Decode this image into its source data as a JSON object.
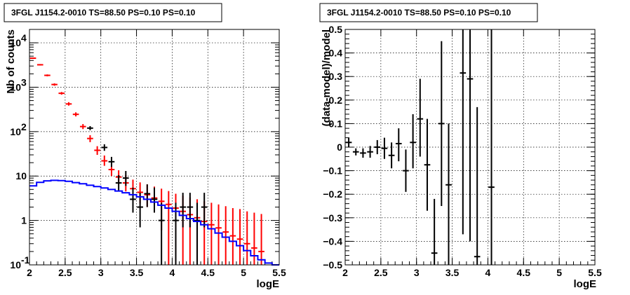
{
  "chart_data": [
    {
      "type": "scatter",
      "title": "3FGL J1154.2-0010 TS=88.50 PS=0.10 PS=0.10",
      "xlabel": "logE",
      "ylabel": "Nb of counts",
      "xlim": [
        2,
        5.5
      ],
      "ylim": [
        0.1,
        20000
      ],
      "yscale": "log",
      "grid": true,
      "x_ticks": [
        "2",
        "2.5",
        "3",
        "3.5",
        "4",
        "4.5",
        "5",
        "5.5"
      ],
      "y_ticks": [
        {
          "value": 0.1,
          "label": "10",
          "sup": "-1"
        },
        {
          "value": 1,
          "label": "1",
          "sup": ""
        },
        {
          "value": 10,
          "label": "10",
          "sup": ""
        },
        {
          "value": 100,
          "label": "10",
          "sup": "2"
        },
        {
          "value": 1000,
          "label": "10",
          "sup": "3"
        },
        {
          "value": 10000,
          "label": "10",
          "sup": "4"
        }
      ],
      "series": [
        {
          "color": "#ff0000",
          "style": "errorbar",
          "points": [
            {
              "x": 2.05,
              "y": 4500,
              "lo": 4350,
              "hi": 4650
            },
            {
              "x": 2.15,
              "y": 3200,
              "lo": 3080,
              "hi": 3320
            },
            {
              "x": 2.25,
              "y": 1850,
              "lo": 1760,
              "hi": 1940
            },
            {
              "x": 2.35,
              "y": 1150,
              "lo": 1080,
              "hi": 1220
            },
            {
              "x": 2.45,
              "y": 730,
              "lo": 680,
              "hi": 780
            },
            {
              "x": 2.55,
              "y": 420,
              "lo": 385,
              "hi": 460
            },
            {
              "x": 2.65,
              "y": 245,
              "lo": 220,
              "hi": 272
            },
            {
              "x": 2.75,
              "y": 130,
              "lo": 114,
              "hi": 148
            },
            {
              "x": 2.85,
              "y": 70,
              "lo": 58,
              "hi": 83
            },
            {
              "x": 2.95,
              "y": 38,
              "lo": 30,
              "hi": 47
            },
            {
              "x": 3.05,
              "y": 22,
              "lo": 17,
              "hi": 29
            },
            {
              "x": 3.15,
              "y": 14,
              "lo": 10,
              "hi": 19
            },
            {
              "x": 3.25,
              "y": 9.5,
              "lo": 6.5,
              "hi": 13.5
            },
            {
              "x": 3.35,
              "y": 7,
              "lo": 4.5,
              "hi": 10.5
            },
            {
              "x": 3.45,
              "y": 5.2,
              "lo": 3.0,
              "hi": 8.3
            },
            {
              "x": 3.55,
              "y": 4.3,
              "lo": 2.4,
              "hi": 7.2
            },
            {
              "x": 3.65,
              "y": 3.8,
              "lo": 2.0,
              "hi": 6.5
            },
            {
              "x": 3.75,
              "y": 3.2,
              "lo": 1.5,
              "hi": 5.8
            },
            {
              "x": 3.85,
              "y": 2.7,
              "lo": 0.6,
              "hi": 5.2
            },
            {
              "x": 3.95,
              "y": 2.3,
              "lo": 0.1,
              "hi": 4.6
            },
            {
              "x": 4.05,
              "y": 1.9,
              "lo": 0.1,
              "hi": 4.0
            },
            {
              "x": 4.15,
              "y": 1.6,
              "lo": 0.1,
              "hi": 3.6
            },
            {
              "x": 4.25,
              "y": 1.35,
              "lo": 0.1,
              "hi": 3.3
            },
            {
              "x": 4.35,
              "y": 1.15,
              "lo": 0.1,
              "hi": 3.0
            },
            {
              "x": 4.45,
              "y": 0.95,
              "lo": 0.1,
              "hi": 2.7
            },
            {
              "x": 4.55,
              "y": 0.8,
              "lo": 0.1,
              "hi": 2.5
            },
            {
              "x": 4.65,
              "y": 0.68,
              "lo": 0.1,
              "hi": 2.3
            },
            {
              "x": 4.75,
              "y": 0.55,
              "lo": 0.1,
              "hi": 2.1
            },
            {
              "x": 4.85,
              "y": 0.45,
              "lo": 0.1,
              "hi": 1.9
            },
            {
              "x": 4.95,
              "y": 0.38,
              "lo": 0.1,
              "hi": 1.8
            },
            {
              "x": 5.05,
              "y": 0.3,
              "lo": 0.1,
              "hi": 1.6
            },
            {
              "x": 5.15,
              "y": 0.24,
              "lo": 0.1,
              "hi": 1.5
            },
            {
              "x": 5.25,
              "y": 0.2,
              "lo": 0.1,
              "hi": 1.4
            }
          ]
        },
        {
          "color": "#000000",
          "style": "errorbar",
          "points": [
            {
              "x": 2.85,
              "y": 120,
              "lo": 108,
              "hi": 133
            },
            {
              "x": 3.05,
              "y": 44,
              "lo": 37,
              "hi": 52
            },
            {
              "x": 3.15,
              "y": 21,
              "lo": 16,
              "hi": 27
            },
            {
              "x": 3.25,
              "y": 7,
              "lo": 4.5,
              "hi": 10.5
            },
            {
              "x": 3.35,
              "y": 9,
              "lo": 6,
              "hi": 13
            },
            {
              "x": 3.45,
              "y": 3,
              "lo": 1.5,
              "hi": 5.5
            },
            {
              "x": 3.55,
              "y": 2,
              "lo": 0.7,
              "hi": 4.2
            },
            {
              "x": 3.65,
              "y": 4,
              "lo": 2,
              "hi": 6.5
            },
            {
              "x": 3.75,
              "y": 3,
              "lo": 1.5,
              "hi": 5.5
            },
            {
              "x": 3.85,
              "y": 1,
              "lo": 0.1,
              "hi": 2.5
            },
            {
              "x": 4.05,
              "y": 1,
              "lo": 0.1,
              "hi": 2.5
            },
            {
              "x": 4.15,
              "y": 2,
              "lo": 0.7,
              "hi": 4.2
            },
            {
              "x": 4.25,
              "y": 2,
              "lo": 0.7,
              "hi": 4.2
            },
            {
              "x": 4.35,
              "y": 1,
              "lo": 0.1,
              "hi": 2.5
            },
            {
              "x": 4.45,
              "y": 2,
              "lo": 0.7,
              "hi": 4.2
            }
          ]
        },
        {
          "color": "#0000ff",
          "style": "step",
          "edges": [
            2.0,
            2.1,
            2.2,
            2.3,
            2.4,
            2.5,
            2.6,
            2.7,
            2.8,
            2.9,
            3.0,
            3.1,
            3.2,
            3.3,
            3.4,
            3.5,
            3.6,
            3.7,
            3.8,
            3.9,
            4.0,
            4.1,
            4.2,
            4.3,
            4.4,
            4.5,
            4.6,
            4.7,
            4.8,
            4.9,
            5.0,
            5.1,
            5.2,
            5.3,
            5.4,
            5.5
          ],
          "values": [
            6.0,
            7.2,
            7.8,
            8.0,
            7.9,
            7.6,
            7.1,
            6.7,
            6.2,
            5.8,
            5.4,
            5.0,
            4.6,
            4.2,
            3.8,
            3.4,
            3.0,
            2.6,
            2.2,
            1.9,
            1.6,
            1.3,
            1.1,
            0.95,
            0.8,
            0.65,
            0.52,
            0.42,
            0.34,
            0.27,
            0.21,
            0.16,
            0.13,
            0.11,
            0.1
          ]
        }
      ]
    },
    {
      "type": "scatter",
      "title": "3FGL J1154.2-0010 TS=88.50 PS=0.10 PS=0.10",
      "xlabel": "logE",
      "ylabel": "(data-model)/model",
      "xlim": [
        2,
        5.5
      ],
      "ylim": [
        -0.5,
        0.5
      ],
      "grid": true,
      "x_ticks": [
        "2",
        "2.5",
        "3",
        "3.5",
        "4",
        "4.5",
        "5",
        "5.5"
      ],
      "y_ticks": [
        "0.5",
        "0.4",
        "0.3",
        "0.2",
        "0.1",
        "0",
        "−0.1",
        "−0.2",
        "−0.3",
        "−0.4",
        "−0.5"
      ],
      "series": [
        {
          "color": "#000000",
          "style": "errorbar",
          "points": [
            {
              "x": 2.05,
              "y": 0.02,
              "lo": 0.0,
              "hi": 0.04
            },
            {
              "x": 2.15,
              "y": -0.02,
              "lo": -0.035,
              "hi": -0.005
            },
            {
              "x": 2.25,
              "y": -0.025,
              "lo": -0.045,
              "hi": -0.005
            },
            {
              "x": 2.35,
              "y": -0.02,
              "lo": -0.045,
              "hi": 0.005
            },
            {
              "x": 2.45,
              "y": 0.0,
              "lo": -0.03,
              "hi": 0.03
            },
            {
              "x": 2.55,
              "y": -0.005,
              "lo": -0.05,
              "hi": 0.04
            },
            {
              "x": 2.65,
              "y": -0.035,
              "lo": -0.09,
              "hi": 0.02
            },
            {
              "x": 2.75,
              "y": 0.015,
              "lo": -0.06,
              "hi": 0.08
            },
            {
              "x": 2.85,
              "y": -0.1,
              "lo": -0.19,
              "hi": -0.01
            },
            {
              "x": 2.95,
              "y": 0.02,
              "lo": -0.09,
              "hi": 0.14
            },
            {
              "x": 3.05,
              "y": 0.12,
              "lo": -0.04,
              "hi": 0.29
            },
            {
              "x": 3.15,
              "y": -0.075,
              "lo": -0.27,
              "hi": 0.12
            },
            {
              "x": 3.25,
              "y": -0.45,
              "lo": -0.5,
              "hi": -0.22
            },
            {
              "x": 3.35,
              "y": 0.1,
              "lo": -0.25,
              "hi": 0.45
            },
            {
              "x": 3.45,
              "y": -0.16,
              "lo": -0.5,
              "hi": 0.1
            },
            {
              "x": 3.65,
              "y": 0.315,
              "lo": -0.37,
              "hi": 0.5
            },
            {
              "x": 3.75,
              "y": 0.29,
              "lo": -0.4,
              "hi": 0.5
            },
            {
              "x": 3.85,
              "y": -0.465,
              "lo": -0.5,
              "hi": 0.17
            },
            {
              "x": 4.05,
              "y": -0.17,
              "lo": -0.5,
              "hi": 0.5
            }
          ]
        }
      ]
    }
  ]
}
